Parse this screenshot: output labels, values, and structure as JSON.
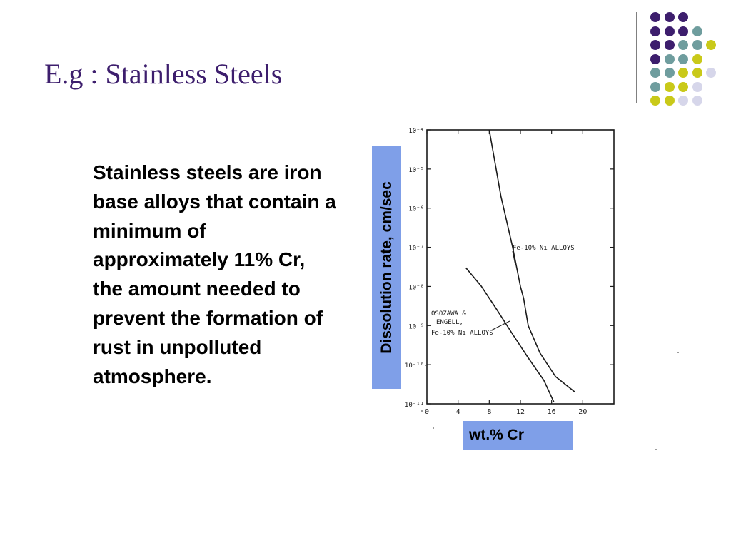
{
  "slide": {
    "title": "E.g : Stainless Steels",
    "body": "Stainless steels are iron base alloys that contain a minimum of approximately 11% Cr, the amount needed to prevent the formation of rust in unpolluted atmosphere.",
    "colors": {
      "title": "#3d1e6d",
      "label_box": "#7f9fe8",
      "dot_purple": "#3d1e6d",
      "dot_teal": "#6f9d9e",
      "dot_yellow": "#c9c919",
      "dot_lavender": "#d6d6ea"
    },
    "decoration": {
      "dot_grid": [
        [
          "purple",
          "purple",
          "purple",
          "",
          "",
          ""
        ],
        [
          "purple",
          "purple",
          "purple",
          "teal",
          "",
          ""
        ],
        [
          "purple",
          "purple",
          "teal",
          "teal",
          "yellow",
          ""
        ],
        [
          "purple",
          "teal",
          "teal",
          "yellow",
          "",
          ""
        ],
        [
          "teal",
          "teal",
          "yellow",
          "yellow",
          "lavender",
          ""
        ],
        [
          "teal",
          "yellow",
          "yellow",
          "lavender",
          "",
          ""
        ],
        [
          "yellow",
          "yellow",
          "lavender",
          "lavender",
          "",
          ""
        ]
      ]
    }
  },
  "chart_data": {
    "type": "line",
    "xlabel": "wt.% Cr",
    "ylabel": "Dissolution rate, cm/sec",
    "x_ticks": [
      "0",
      "4",
      "8",
      "12",
      "16",
      "20"
    ],
    "y_ticks": [
      "10⁻⁴",
      "10⁻⁵",
      "10⁻⁶",
      "10⁻⁷",
      "10⁻⁸",
      "10⁻⁹",
      "10⁻¹⁰",
      "10⁻¹¹"
    ],
    "xlim": [
      0,
      24
    ],
    "ylim": [
      1e-11,
      0.0001
    ],
    "log_y": true,
    "grid": false,
    "series": [
      {
        "name": "Fe-10% Ni ALLOYS",
        "points": [
          [
            8,
            0.0001
          ],
          [
            9.5,
            2e-06
          ],
          [
            11,
            1e-07
          ],
          [
            12,
            1e-08
          ],
          [
            12.4,
            5e-09
          ],
          [
            13,
            1e-09
          ],
          [
            14.5,
            2e-10
          ],
          [
            16.5,
            5e-11
          ],
          [
            19,
            2e-11
          ]
        ]
      },
      {
        "name": "OSOZAWA & ENGELL, Fe-10% Ni ALLOYS",
        "points": [
          [
            5,
            3e-08
          ],
          [
            7,
            1e-08
          ],
          [
            9,
            2.5e-09
          ],
          [
            11,
            6e-10
          ],
          [
            13,
            1.5e-10
          ],
          [
            15,
            4e-11
          ],
          [
            16.3,
            1.1e-11
          ]
        ]
      }
    ],
    "annotations": [
      {
        "text": "Fe-10% Ni ALLOYS",
        "target_series": 0
      },
      {
        "text": "OSOZAWA &",
        "target_series": 1
      },
      {
        "text": "ENGELL,",
        "target_series": 1
      },
      {
        "text": "Fe-10% Ni ALLOYS",
        "target_series": 1
      }
    ]
  }
}
